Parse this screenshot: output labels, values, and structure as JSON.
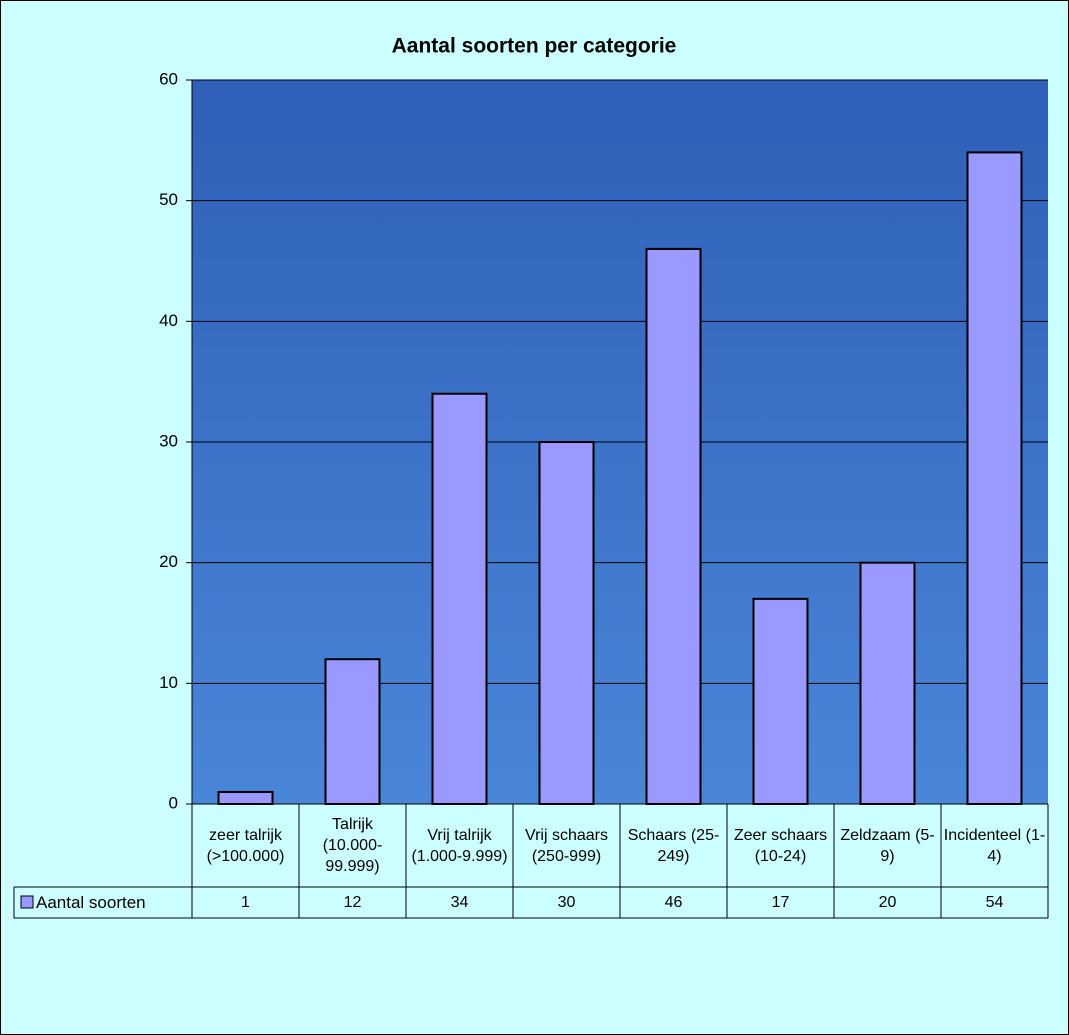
{
  "chart_data": {
    "type": "bar",
    "title": "Aantal soorten per categorie",
    "categories": [
      "zeer talrijk (>100.000)",
      "Talrijk (10.000-99.999)",
      "Vrij talrijk (1.000-9.999)",
      "Vrij schaars (250-999)",
      "Schaars (25-249)",
      "Zeer schaars (10-24)",
      "Zeldzaam (5-9)",
      "Incidenteel (1-4)"
    ],
    "series": [
      {
        "name": "Aantal soorten",
        "color": "#9999ff",
        "values": [
          1,
          12,
          34,
          30,
          46,
          17,
          20,
          54
        ]
      }
    ],
    "ylim": [
      0,
      60
    ],
    "yticks": [
      0,
      10,
      20,
      30,
      40,
      50,
      60
    ],
    "grid": true
  }
}
